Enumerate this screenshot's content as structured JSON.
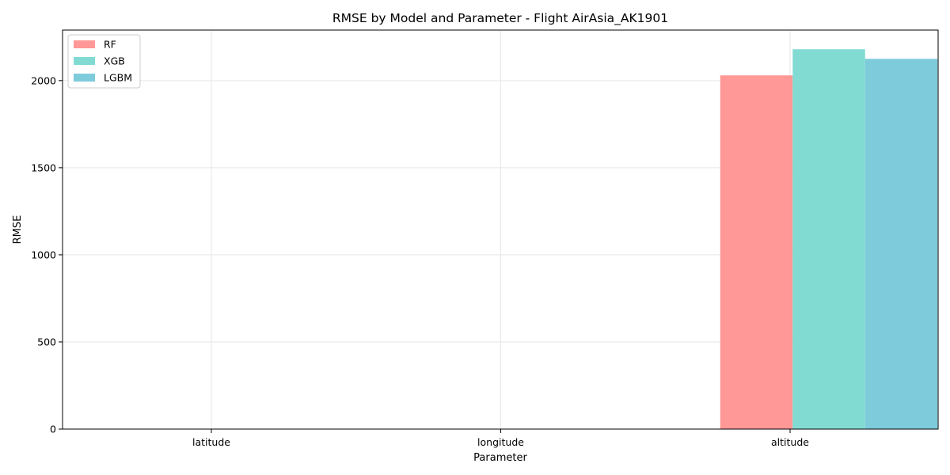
{
  "chart_data": {
    "type": "bar",
    "title": "RMSE by Model and Parameter - Flight AirAsia_AK1901",
    "xlabel": "Parameter",
    "ylabel": "RMSE",
    "categories": [
      "latitude",
      "longitude",
      "altitude"
    ],
    "series": [
      {
        "name": "RF",
        "color": "#ff9896",
        "values": [
          0,
          0,
          2030
        ]
      },
      {
        "name": "XGB",
        "color": "#82dbd3",
        "values": [
          0,
          0,
          2180
        ]
      },
      {
        "name": "LGBM",
        "color": "#7ecbdc",
        "values": [
          0,
          0,
          2125
        ]
      }
    ],
    "ylim": [
      0,
      2290
    ],
    "yticks": [
      0,
      500,
      1000,
      1500,
      2000
    ],
    "grid": true,
    "legend_position": "upper-left"
  }
}
